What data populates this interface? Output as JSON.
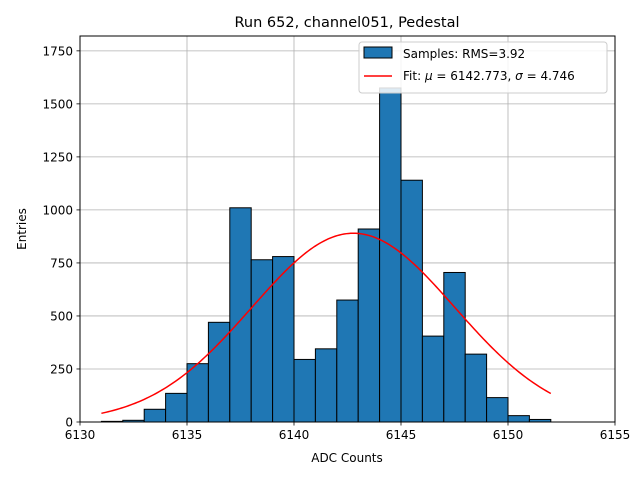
{
  "chart_data": {
    "type": "bar",
    "title": "Run 652, channel051, Pedestal",
    "xlabel": "ADC Counts",
    "ylabel": "Entries",
    "xlim": [
      6130,
      6155
    ],
    "ylim": [
      0,
      1820
    ],
    "x_ticks": [
      6130,
      6135,
      6140,
      6145,
      6150,
      6155
    ],
    "y_ticks": [
      0,
      250,
      500,
      750,
      1000,
      1250,
      1500,
      1750
    ],
    "grid": true,
    "bin_edges": [
      6131,
      6132,
      6133,
      6134,
      6135,
      6136,
      6137,
      6138,
      6139,
      6140,
      6141,
      6142,
      6143,
      6144,
      6145,
      6146,
      6147,
      6148,
      6149,
      6150,
      6151,
      6152
    ],
    "counts": [
      3,
      8,
      60,
      135,
      275,
      470,
      1010,
      765,
      780,
      295,
      345,
      575,
      910,
      1575,
      1140,
      405,
      705,
      320,
      115,
      30,
      12
    ],
    "bar_color": "#1f77b4",
    "fit": {
      "mu": 6142.773,
      "sigma": 4.746,
      "amplitude": 890,
      "x_range": [
        6131,
        6152
      ],
      "color": "#ff0000"
    },
    "legend": {
      "position": "top-right",
      "entries": [
        {
          "kind": "patch",
          "label": "Samples: RMS=3.92",
          "color": "#1f77b4"
        },
        {
          "kind": "line",
          "label_prefix": "Fit: ",
          "mu_symbol": "μ",
          "mu_text": " = 6142.773, ",
          "sigma_symbol": "σ",
          "sigma_text": " = 4.746",
          "color": "#ff0000"
        }
      ]
    }
  }
}
